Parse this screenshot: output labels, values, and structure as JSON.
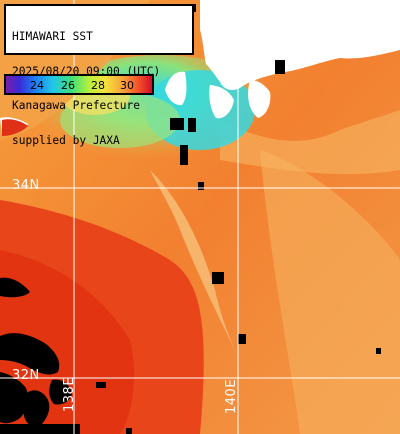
{
  "title_lines": [
    "HIMAWARI SST",
    "2025/08/20 09:00 (UTC)",
    "Kanagawa Prefecture",
    "supplied by JAXA"
  ],
  "scale": {
    "ticks": [
      "24",
      "26",
      "28",
      "30"
    ]
  },
  "grid": {
    "lat_labels": [
      "34N",
      "32N"
    ],
    "lon_labels": [
      "138E",
      "140E"
    ]
  },
  "colors": {
    "warm_sea": "#f06a1a",
    "hot_sea": "#e23a12",
    "mid_sea": "#f39a3a",
    "cool_sea": "#7fe08a",
    "cold_sea": "#2fd0e0",
    "land_cloud": "#000000",
    "land_white": "#ffffff",
    "grid": "#ffffff"
  }
}
